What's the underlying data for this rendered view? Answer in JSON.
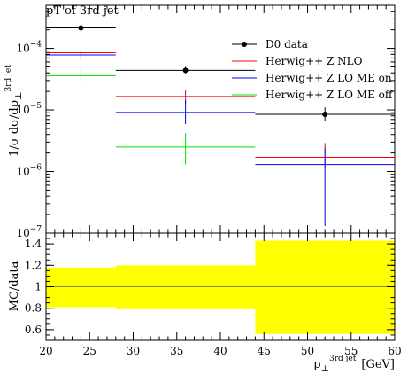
{
  "chart_data": [
    {
      "type": "line",
      "title": "pT of 3rd jet",
      "ylabel": {
        "main": "1/σ dσ/dp",
        "sub": "⊥",
        "sup": "3rd jet"
      },
      "xlim": [
        20,
        60
      ],
      "ylim": [
        1e-07,
        0.0005
      ],
      "yscale": "log",
      "y_ticks": [
        {
          "label": "10",
          "exp": "−4",
          "value": 0.0001
        },
        {
          "label": "10",
          "exp": "−5",
          "value": 1e-05
        },
        {
          "label": "10",
          "exp": "−6",
          "value": 1e-06
        },
        {
          "label": "10",
          "exp": "−7",
          "value": 1e-07
        }
      ],
      "legend_position": "top-right",
      "series": [
        {
          "name": "D0 data",
          "color": "#000000",
          "marker": "dot",
          "bins": [
            {
              "x0": 20,
              "x1": 28,
              "x": 24,
              "y": 0.000215,
              "yerr_low": 0.000195,
              "yerr_high": 0.000238
            },
            {
              "x0": 28,
              "x1": 44,
              "x": 36,
              "y": 4.4e-05,
              "yerr_low": 3.9e-05,
              "yerr_high": 5e-05
            },
            {
              "x0": 44,
              "x1": 60,
              "x": 52,
              "y": 8.5e-06,
              "yerr_low": 6.5e-06,
              "yerr_high": 1.1e-05
            }
          ]
        },
        {
          "name": "Herwig++ Z NLO",
          "color": "#ff0000",
          "marker": "none",
          "bins": [
            {
              "x0": 20,
              "x1": 28,
              "x": 24,
              "y": 8.5e-05,
              "yerr_low": 8.2e-05,
              "yerr_high": 8.8e-05
            },
            {
              "x0": 28,
              "x1": 44,
              "x": 36,
              "y": 1.65e-05,
              "yerr_low": 1.25e-05,
              "yerr_high": 2.1e-05
            },
            {
              "x0": 44,
              "x1": 60,
              "x": 52,
              "y": 1.7e-06,
              "yerr_low": 1.1e-06,
              "yerr_high": 2.9e-06
            }
          ]
        },
        {
          "name": "Herwig++ Z LO ME on",
          "color": "#0000ff",
          "marker": "none",
          "bins": [
            {
              "x0": 20,
              "x1": 28,
              "x": 24,
              "y": 7.8e-05,
              "yerr_low": 6.5e-05,
              "yerr_high": 9e-05
            },
            {
              "x0": 28,
              "x1": 44,
              "x": 36,
              "y": 9.1e-06,
              "yerr_low": 5.9e-06,
              "yerr_high": 1.45e-05
            },
            {
              "x0": 44,
              "x1": 60,
              "x": 52,
              "y": 1.3e-06,
              "yerr_low": 1.3e-07,
              "yerr_high": 2.4e-06
            }
          ]
        },
        {
          "name": "Herwig++ Z LO ME off",
          "color": "#00dd00",
          "marker": "none",
          "bins": [
            {
              "x0": 20,
              "x1": 28,
              "x": 24,
              "y": 3.6e-05,
              "yerr_low": 2.9e-05,
              "yerr_high": 4.6e-05
            },
            {
              "x0": 28,
              "x1": 44,
              "x": 36,
              "y": 2.5e-06,
              "yerr_low": 1.3e-06,
              "yerr_high": 4.2e-06
            },
            {
              "x0": 44,
              "x1": 60,
              "x": 52,
              "y": null,
              "yerr_low": null,
              "yerr_high": null
            }
          ]
        }
      ]
    },
    {
      "type": "area",
      "ylabel": "MC/data",
      "xlabel": {
        "main": "p",
        "sub": "⊥",
        "sup": "3rd jet",
        "unit": "[GeV]"
      },
      "xlim": [
        20,
        60
      ],
      "ylim": [
        0.5,
        1.5
      ],
      "x_ticks": [
        20,
        25,
        30,
        35,
        40,
        45,
        50,
        55,
        60
      ],
      "y_ticks": [
        0.6,
        0.8,
        1,
        1.2,
        1.4
      ],
      "reference_line": 1,
      "band_color": "#ffff00",
      "bands": [
        {
          "x0": 20,
          "x1": 28,
          "low": 0.81,
          "high": 1.18
        },
        {
          "x0": 28,
          "x1": 44,
          "low": 0.79,
          "high": 1.2
        },
        {
          "x0": 44,
          "x1": 60,
          "low": 0.56,
          "high": 1.43
        }
      ]
    }
  ]
}
